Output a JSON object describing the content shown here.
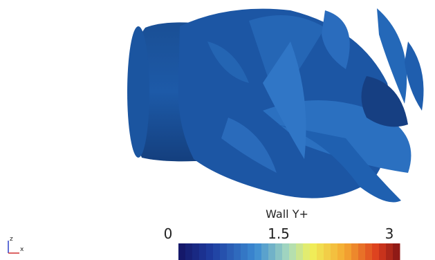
{
  "colorbar": {
    "title": "Wall Y+",
    "ticks": [
      0,
      1.5,
      3
    ]
  },
  "axes_triad": {
    "z": "z",
    "x": "x"
  }
}
